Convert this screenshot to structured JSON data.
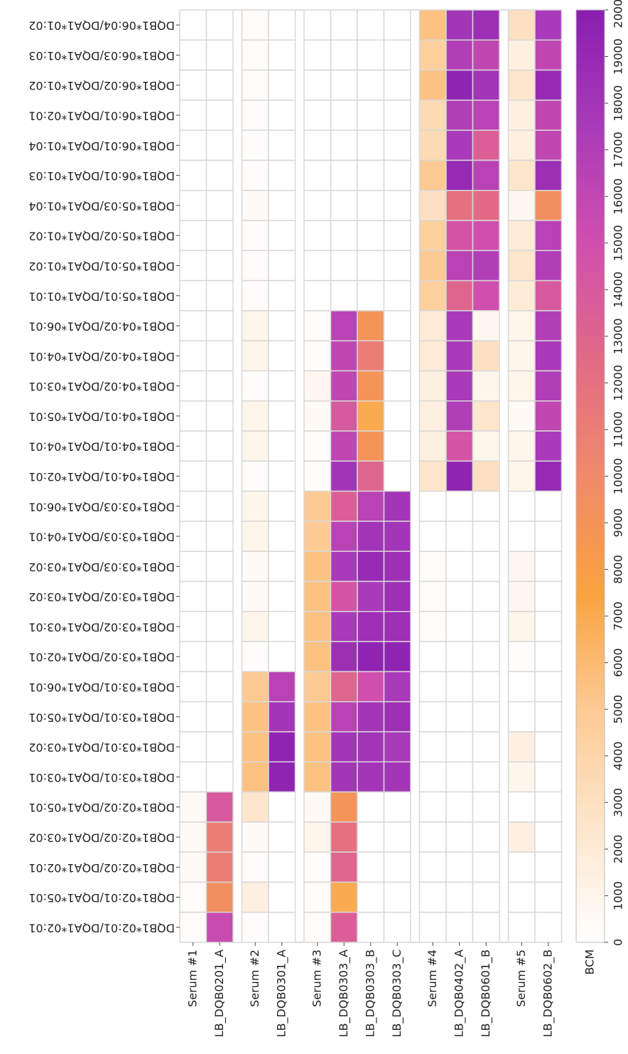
{
  "chart_data": {
    "type": "heatmap",
    "categories": [
      "Serum #1",
      "LB_DQB0201_A",
      "Serum #2",
      "LB_DQB0301_A",
      "Serum #3",
      "LB_DQB0303_A",
      "LB_DQB0303_B",
      "LB_DQB0303_C",
      "Serum #4",
      "LB_DQB0402_A",
      "LB_DQB0601_B",
      "Serum #5",
      "LB_DQB0602_B"
    ],
    "rows": [
      "DQB1*06:04/DQA1*01:02",
      "DQB1*06:03/DQA1*01:03",
      "DQB1*06:02/DQA1*01:02",
      "DQB1*06:01/DQA1*02:01",
      "DQB1*06:01/DQA1*01:04",
      "DQB1*06:01/DQA1*01:03",
      "DQB1*05:03/DQA1*01:04",
      "DQB1*05:02/DQA1*01:02",
      "DQB1*05:01/DQA1*01:02",
      "DQB1*05:01/DQA1*01:01",
      "DQB1*04:02/DQA1*06:01",
      "DQB1*04:02/DQA1*04:01",
      "DQB1*04:02/DQA1*03:01",
      "DQB1*04:01/DQA1*05:01",
      "DQB1*04:01/DQA1*04:01",
      "DQB1*04:01/DQA1*02:01",
      "DQB1*03:03/DQA1*06:01",
      "DQB1*03:03/DQA1*04:01",
      "DQB1*03:03/DQA1*03:02",
      "DQB1*03:02/DQA1*03:02",
      "DQB1*03:02/DQA1*03:01",
      "DQB1*03:02/DQA1*02:01",
      "DQB1*03:01/DQA1*06:01",
      "DQB1*03:01/DQA1*05:01",
      "DQB1*03:01/DQA1*03:02",
      "DQB1*03:01/DQA1*03:01",
      "DQB1*02:02/DQA1*05:01",
      "DQB1*02:02/DQA1*03:02",
      "DQB1*02:02/DQA1*02:01",
      "DQB1*02:01/DQA1*05:01",
      "DQB1*02:01/DQA1*02:01"
    ],
    "values": [
      [
        0,
        0,
        300,
        0,
        0,
        0,
        0,
        0,
        5500,
        18000,
        18500,
        3000,
        17500
      ],
      [
        0,
        0,
        300,
        0,
        0,
        0,
        0,
        0,
        4500,
        17000,
        16000,
        1500,
        16000
      ],
      [
        0,
        0,
        300,
        0,
        0,
        0,
        0,
        0,
        5500,
        19500,
        18000,
        2500,
        19000
      ],
      [
        0,
        0,
        200,
        0,
        0,
        0,
        0,
        0,
        3500,
        17000,
        16500,
        1500,
        16000
      ],
      [
        0,
        0,
        200,
        0,
        0,
        0,
        0,
        0,
        3500,
        17500,
        13500,
        1500,
        16000
      ],
      [
        0,
        0,
        200,
        0,
        0,
        0,
        0,
        0,
        5000,
        19000,
        16500,
        2500,
        18500
      ],
      [
        0,
        0,
        500,
        0,
        0,
        0,
        0,
        0,
        3000,
        12000,
        12500,
        800,
        9500
      ],
      [
        0,
        0,
        200,
        0,
        0,
        0,
        0,
        0,
        4500,
        14500,
        15000,
        2000,
        16500
      ],
      [
        0,
        0,
        200,
        0,
        0,
        0,
        0,
        0,
        5000,
        16500,
        17000,
        2500,
        17000
      ],
      [
        0,
        0,
        200,
        0,
        0,
        0,
        0,
        0,
        4500,
        13000,
        15000,
        2000,
        14000
      ],
      [
        0,
        0,
        1000,
        0,
        300,
        16500,
        9000,
        0,
        2000,
        17500,
        800,
        1000,
        17000
      ],
      [
        0,
        0,
        1000,
        0,
        300,
        16000,
        11000,
        0,
        2000,
        17500,
        3000,
        1000,
        17500
      ],
      [
        0,
        0,
        200,
        0,
        800,
        16000,
        9000,
        0,
        1500,
        17500,
        1000,
        1000,
        17000
      ],
      [
        0,
        0,
        1000,
        0,
        500,
        14000,
        7000,
        0,
        1500,
        17000,
        2500,
        500,
        16000
      ],
      [
        0,
        0,
        1000,
        0,
        300,
        16000,
        9000,
        0,
        1500,
        14500,
        1000,
        1000,
        17500
      ],
      [
        0,
        0,
        200,
        0,
        300,
        18000,
        13000,
        0,
        2500,
        19500,
        3000,
        1000,
        19000
      ],
      [
        0,
        0,
        1000,
        0,
        5000,
        13500,
        16500,
        18000,
        0,
        0,
        0,
        0,
        0
      ],
      [
        0,
        0,
        1000,
        0,
        5000,
        16500,
        18000,
        18000,
        0,
        0,
        0,
        0,
        0
      ],
      [
        0,
        0,
        500,
        0,
        5500,
        17500,
        19000,
        18500,
        300,
        0,
        0,
        800,
        0
      ],
      [
        0,
        0,
        500,
        0,
        5500,
        14500,
        17500,
        18500,
        300,
        0,
        0,
        800,
        0
      ],
      [
        0,
        0,
        1000,
        0,
        5500,
        17500,
        18500,
        18500,
        300,
        0,
        0,
        1000,
        0
      ],
      [
        0,
        0,
        200,
        0,
        5500,
        18500,
        19500,
        19500,
        0,
        0,
        0,
        200,
        0
      ],
      [
        0,
        0,
        5000,
        16500,
        5000,
        13000,
        15000,
        17500,
        0,
        0,
        0,
        0,
        0
      ],
      [
        0,
        0,
        5500,
        18000,
        5500,
        16500,
        18000,
        18500,
        0,
        0,
        0,
        0,
        0
      ],
      [
        0,
        0,
        5500,
        19500,
        5500,
        18000,
        18000,
        17500,
        0,
        0,
        0,
        1500,
        0
      ],
      [
        0,
        0,
        5500,
        19500,
        5500,
        18000,
        18000,
        18000,
        0,
        0,
        0,
        1000,
        0
      ],
      [
        500,
        14000,
        2500,
        0,
        500,
        9000,
        0,
        0,
        0,
        0,
        0,
        0,
        0
      ],
      [
        500,
        11000,
        500,
        0,
        1000,
        12000,
        0,
        0,
        0,
        0,
        0,
        1500,
        0
      ],
      [
        500,
        11000,
        200,
        0,
        300,
        13000,
        0,
        0,
        0,
        0,
        0,
        0,
        0
      ],
      [
        300,
        9500,
        1500,
        0,
        300,
        7000,
        0,
        0,
        0,
        0,
        0,
        0,
        0
      ],
      [
        300,
        15500,
        200,
        0,
        300,
        13500,
        0,
        0,
        0,
        0,
        0,
        0,
        0
      ]
    ],
    "colorbar_label": "BCM",
    "clim": [
      0,
      20000
    ],
    "colorbar_ticks": [
      0,
      1000,
      2000,
      3000,
      4000,
      5000,
      6000,
      7000,
      8000,
      9000,
      10000,
      11000,
      12000,
      13000,
      14000,
      15000,
      16000,
      17000,
      18000,
      19000,
      20000
    ],
    "colormap": [
      "#ffffff",
      "#fde6cc",
      "#fdca93",
      "#f9a23f",
      "#f08a6a",
      "#e26a86",
      "#d04fae",
      "#a93ab9",
      "#8a1fb0"
    ]
  }
}
